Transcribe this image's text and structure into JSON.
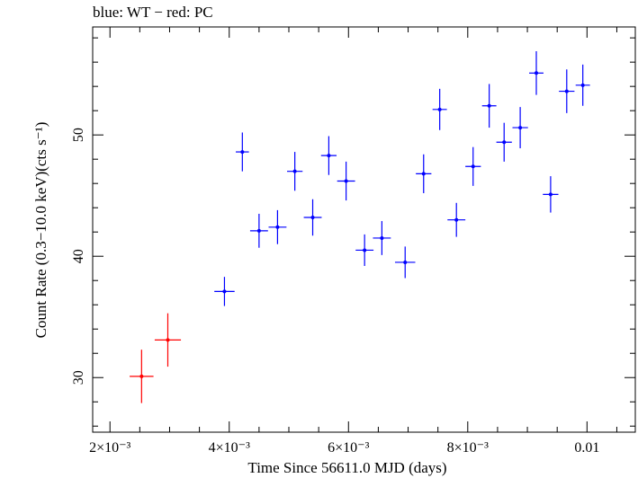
{
  "chart_data": {
    "type": "scatter",
    "title": "blue: WT − red: PC",
    "xlabel": "Time Since 56611.0 MJD (days)",
    "ylabel": "Count Rate (0.3−10.0 keV)(cts s⁻¹)",
    "xlim": [
      0.00171,
      0.01081
    ],
    "ylim": [
      25.5,
      58.9
    ],
    "grid": false,
    "x_ticks": [
      {
        "value": 0.002,
        "label": "2×10⁻³"
      },
      {
        "value": 0.004,
        "label": "4×10⁻³"
      },
      {
        "value": 0.006,
        "label": "6×10⁻³"
      },
      {
        "value": 0.008,
        "label": "8×10⁻³"
      },
      {
        "value": 0.01,
        "label": "0.01"
      }
    ],
    "y_ticks": [
      {
        "value": 30,
        "label": "30"
      },
      {
        "value": 40,
        "label": "40"
      },
      {
        "value": 50,
        "label": "50"
      }
    ],
    "series": [
      {
        "name": "PC",
        "color": "#ff0000",
        "points": [
          {
            "x": 0.00253,
            "xerr": 0.0002,
            "y": 30.1,
            "yerr": 2.2
          },
          {
            "x": 0.00297,
            "xerr": 0.00022,
            "y": 33.1,
            "yerr": 2.2
          }
        ]
      },
      {
        "name": "WT",
        "color": "#0000ff",
        "points": [
          {
            "x": 0.00392,
            "xerr": 0.00017,
            "y": 37.1,
            "yerr": 1.2
          },
          {
            "x": 0.00422,
            "xerr": 0.00011,
            "y": 48.6,
            "yerr": 1.6
          },
          {
            "x": 0.0045,
            "xerr": 0.00015,
            "y": 42.1,
            "yerr": 1.4
          },
          {
            "x": 0.00481,
            "xerr": 0.00015,
            "y": 42.4,
            "yerr": 1.4
          },
          {
            "x": 0.0051,
            "xerr": 0.00013,
            "y": 47.0,
            "yerr": 1.6
          },
          {
            "x": 0.0054,
            "xerr": 0.00015,
            "y": 43.2,
            "yerr": 1.5
          },
          {
            "x": 0.00567,
            "xerr": 0.00013,
            "y": 48.3,
            "yerr": 1.6
          },
          {
            "x": 0.00596,
            "xerr": 0.00015,
            "y": 46.2,
            "yerr": 1.6
          },
          {
            "x": 0.00627,
            "xerr": 0.00015,
            "y": 40.5,
            "yerr": 1.3
          },
          {
            "x": 0.00656,
            "xerr": 0.00015,
            "y": 41.5,
            "yerr": 1.4
          },
          {
            "x": 0.00695,
            "xerr": 0.00017,
            "y": 39.5,
            "yerr": 1.3
          },
          {
            "x": 0.00726,
            "xerr": 0.00013,
            "y": 46.8,
            "yerr": 1.6
          },
          {
            "x": 0.00753,
            "xerr": 0.00012,
            "y": 52.1,
            "yerr": 1.7
          },
          {
            "x": 0.00781,
            "xerr": 0.00015,
            "y": 43.0,
            "yerr": 1.4
          },
          {
            "x": 0.00809,
            "xerr": 0.00013,
            "y": 47.4,
            "yerr": 1.6
          },
          {
            "x": 0.00836,
            "xerr": 0.00012,
            "y": 52.4,
            "yerr": 1.8
          },
          {
            "x": 0.00861,
            "xerr": 0.00013,
            "y": 49.4,
            "yerr": 1.6
          },
          {
            "x": 0.00888,
            "xerr": 0.00013,
            "y": 50.6,
            "yerr": 1.7
          },
          {
            "x": 0.00915,
            "xerr": 0.00012,
            "y": 55.1,
            "yerr": 1.8
          },
          {
            "x": 0.00939,
            "xerr": 0.00013,
            "y": 45.1,
            "yerr": 1.5
          },
          {
            "x": 0.00966,
            "xerr": 0.00013,
            "y": 53.6,
            "yerr": 1.8
          },
          {
            "x": 0.00993,
            "xerr": 0.00012,
            "y": 54.1,
            "yerr": 1.7
          }
        ]
      }
    ]
  }
}
